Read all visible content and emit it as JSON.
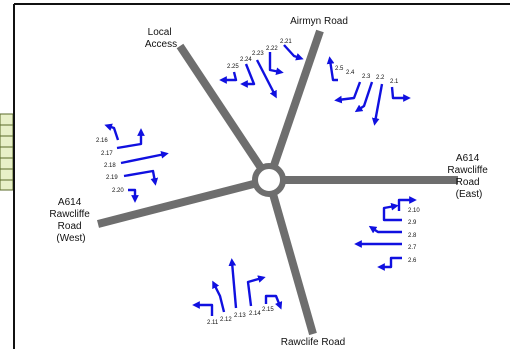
{
  "colors": {
    "road": "#6e6e6e",
    "arrow": "#1010e0",
    "frame": "#111111",
    "tab_fill": "#e8f0c8",
    "tab_border": "#5a6a2a"
  },
  "roads": {
    "airmyn": {
      "label_lines": [
        "Airmyn Road"
      ]
    },
    "local": {
      "label_lines": [
        "Local",
        "Access"
      ]
    },
    "east": {
      "label_lines": [
        "A614",
        "Rawcliffe",
        "Road",
        "(East)"
      ]
    },
    "west": {
      "label_lines": [
        "A614",
        "Rawcliffe",
        "Road",
        "(West)"
      ]
    },
    "rawcliffe": {
      "label_lines": [
        "Rawclife Road"
      ]
    }
  },
  "movement_groups": {
    "airmyn_approach": [
      "2.1",
      "2.2",
      "2.3",
      "2.4",
      "2.5"
    ],
    "local_approach": [
      "2.21",
      "2.22",
      "2.23",
      "2.24",
      "2.25"
    ],
    "east_approach": [
      "2.10",
      "2.9",
      "2.8",
      "2.7",
      "2.6"
    ],
    "west_approach": [
      "2.16",
      "2.17",
      "2.18",
      "2.19",
      "2.20"
    ],
    "rawcliffe_approach": [
      "2.11",
      "2.12",
      "2.13",
      "2.14",
      "2.15"
    ]
  }
}
